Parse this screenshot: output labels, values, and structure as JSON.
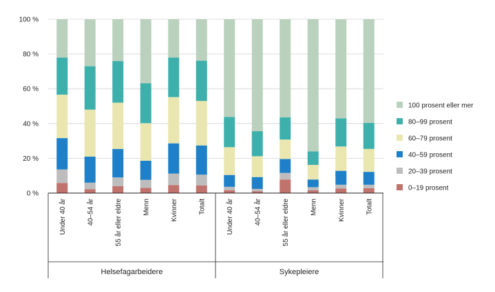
{
  "chart_data": {
    "type": "bar",
    "stacked": true,
    "ylim": [
      0,
      100
    ],
    "yticks": [
      0,
      20,
      40,
      60,
      80,
      100
    ],
    "ytick_labels": [
      "0 %",
      "20 %",
      "40 %",
      "60 %",
      "80 %",
      "100 %"
    ],
    "grid": true,
    "legend_position": "right",
    "groups": [
      {
        "label": "Helsefagarbeidere",
        "categories": [
          "Under 40 år",
          "40–54 år",
          "55 år eller eldre",
          "Menn",
          "Kvinner",
          "Totalt"
        ]
      },
      {
        "label": "Sykepleiere",
        "categories": [
          "Under 40 år",
          "40–54 år",
          "55 år eller eldre",
          "Menn",
          "Kvinner",
          "Totalt"
        ]
      }
    ],
    "series": [
      {
        "name": "0–19 prosent",
        "color": "#c0726d",
        "values": [
          5.8,
          2.2,
          4.0,
          3.0,
          4.6,
          4.4,
          1.6,
          1.0,
          7.8,
          1.6,
          2.6,
          2.8
        ]
      },
      {
        "name": "20–39  prosent",
        "color": "#bdbdbd",
        "values": [
          7.8,
          3.8,
          5.0,
          4.6,
          6.6,
          6.2,
          2.0,
          1.4,
          3.8,
          1.8,
          2.2,
          2.0
        ]
      },
      {
        "name": "40–59 prosent",
        "color": "#1d80c8",
        "values": [
          18.0,
          15.0,
          16.4,
          11.0,
          17.4,
          16.8,
          6.8,
          6.8,
          8.0,
          4.4,
          8.0,
          7.4
        ]
      },
      {
        "name": "60–79 prosent",
        "color": "#e9e6b0",
        "values": [
          25.0,
          27.0,
          26.6,
          21.6,
          26.6,
          25.6,
          16.0,
          12.0,
          11.2,
          8.4,
          14.0,
          13.2
        ]
      },
      {
        "name": "80–99 prosent",
        "color": "#3eb0ac",
        "values": [
          21.4,
          25.0,
          24.0,
          23.0,
          22.8,
          23.2,
          17.4,
          14.4,
          12.8,
          7.8,
          16.2,
          15.0
        ]
      },
      {
        "name": "100 prosent eller mer",
        "color": "#b9d1bd",
        "values": [
          22.0,
          27.0,
          24.0,
          36.8,
          22.0,
          23.8,
          56.2,
          64.4,
          56.4,
          76.0,
          57.0,
          59.6
        ]
      }
    ]
  }
}
